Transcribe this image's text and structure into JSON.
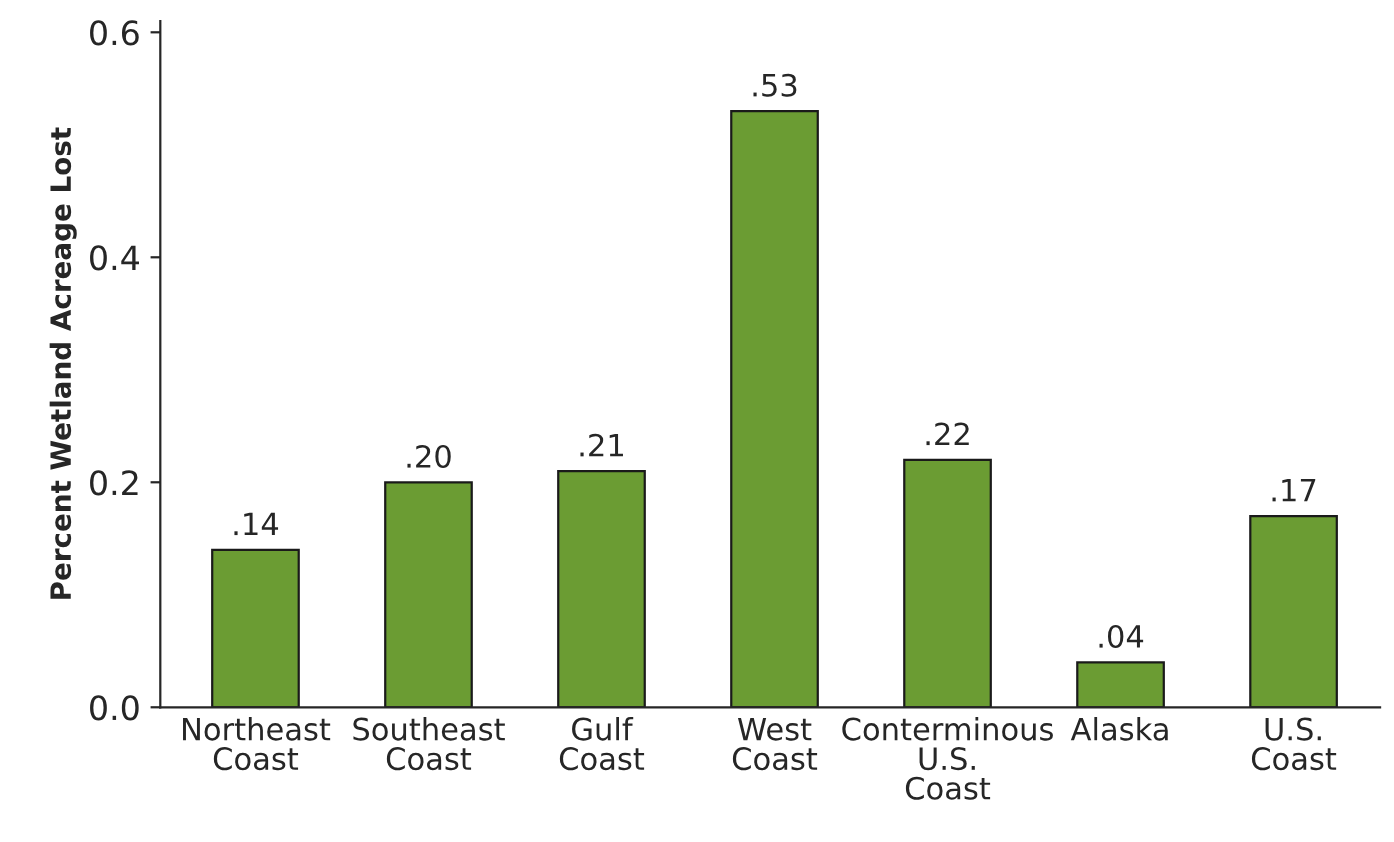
{
  "chart_data": {
    "type": "bar",
    "ylabel": "Percent Wetland Acreage Lost",
    "categories": [
      "Northeast\nCoast",
      "Southeast\nCoast",
      "Gulf\nCoast",
      "West\nCoast",
      "Conterminous\nU.S.\nCoast",
      "Alaska",
      "U.S.\nCoast"
    ],
    "values": [
      0.14,
      0.2,
      0.21,
      0.53,
      0.22,
      0.04,
      0.17
    ],
    "value_labels": [
      ".14",
      ".20",
      ".21",
      ".53",
      ".22",
      ".04",
      ".17"
    ],
    "color": "#6b9c33",
    "ylim": [
      0,
      0.61
    ],
    "yticks": [
      {
        "value": 0,
        "label": "0.0"
      },
      {
        "value": 0.2,
        "label": "0.2"
      },
      {
        "value": 0.4,
        "label": "0.4"
      },
      {
        "value": 0.6,
        "label": "0.6"
      }
    ],
    "grid": false,
    "legend": false
  }
}
